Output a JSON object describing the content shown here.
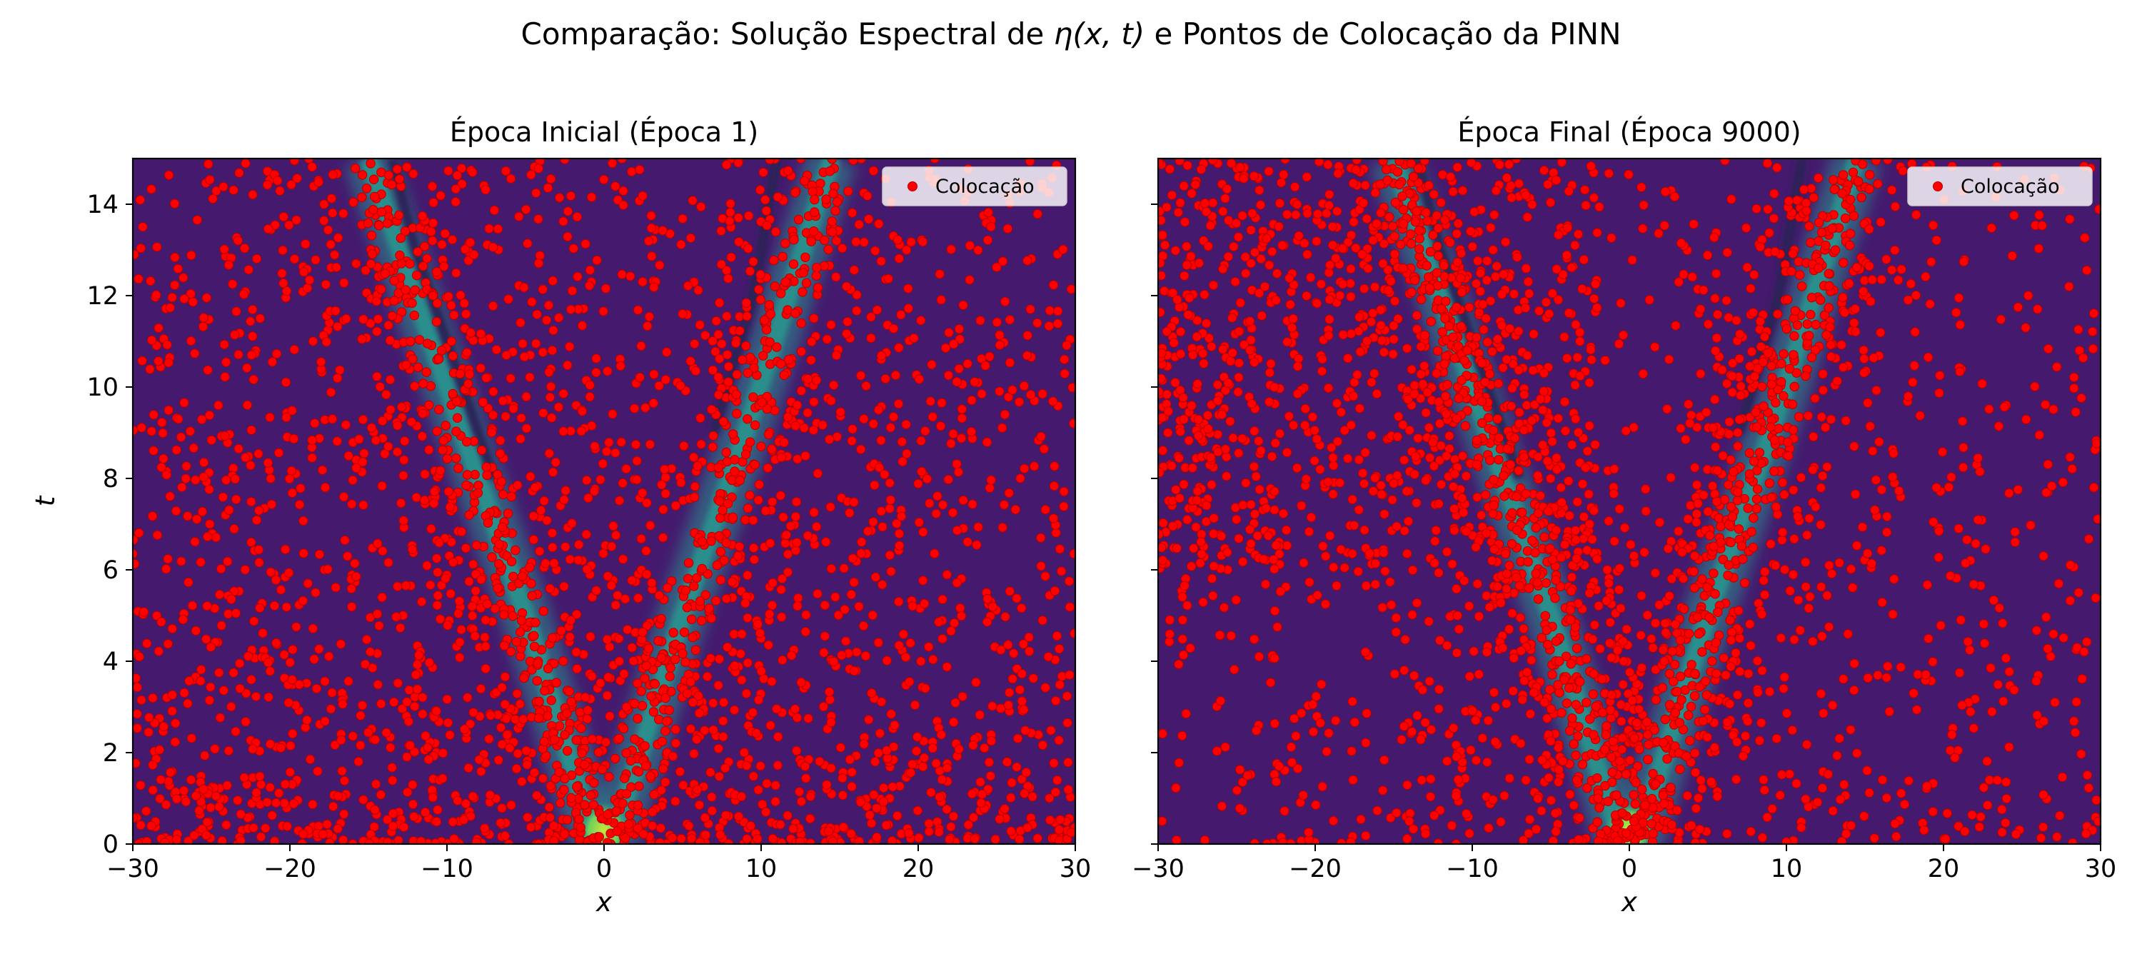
{
  "figure": {
    "suptitle_prefix": "Comparação: Solução Espectral de ",
    "suptitle_math": "η(x, t)",
    "suptitle_suffix": " e Pontos de Colocação da PINN"
  },
  "colors": {
    "background": "#451a6e",
    "band_mid": "#2b8f8c",
    "band_peak": "#b5e33b",
    "points": "#ff0000",
    "point_edge": "#b30000"
  },
  "chart_data": [
    {
      "type": "scatter",
      "background": "heatmap of η(x,t) with two diverging soliton bands",
      "title": "Época Inicial (Época 1)",
      "xlabel": "x",
      "ylabel": "t",
      "xlim": [
        -30,
        30
      ],
      "ylim": [
        0,
        15
      ],
      "xticks": [
        "−30",
        "−20",
        "−10",
        "0",
        "10",
        "20",
        "30"
      ],
      "yticks": [
        "0",
        "2",
        "4",
        "6",
        "8",
        "10",
        "12",
        "14"
      ],
      "legend": {
        "label": "Colocação",
        "position": "top-right"
      },
      "series": [
        {
          "name": "Colocação",
          "approx_count": 3000,
          "distribution": "dense near t=0 and along bands",
          "sample": [
            [
              -25.5,
              1.2
            ],
            [
              -18.3,
              3.4
            ],
            [
              -12.1,
              0.6
            ],
            [
              -8.4,
              5.2
            ],
            [
              -6.0,
              2.1
            ],
            [
              -3.2,
              0.4
            ],
            [
              2.7,
              3.9
            ],
            [
              7.2,
              6.1
            ],
            [
              12.8,
              1.7
            ],
            [
              18.5,
              2.6
            ],
            [
              24.0,
              0.9
            ],
            [
              -27.1,
              9.3
            ],
            [
              -20.2,
              12.1
            ],
            [
              -11.0,
              13.4
            ],
            [
              -7.5,
              10.2
            ],
            [
              5.0,
              11.6
            ],
            [
              9.6,
              8.3
            ],
            [
              13.4,
              14.1
            ],
            [
              22.6,
              10.4
            ],
            [
              27.8,
              6.7
            ]
          ]
        }
      ]
    },
    {
      "type": "scatter",
      "background": "heatmap of η(x,t) with two diverging soliton bands",
      "title": "Época Final (Época 9000)",
      "xlabel": "x",
      "ylabel": "",
      "xlim": [
        -30,
        30
      ],
      "ylim": [
        0,
        15
      ],
      "xticks": [
        "−30",
        "−20",
        "−10",
        "0",
        "10",
        "20",
        "30"
      ],
      "yticks": [],
      "legend": {
        "label": "Colocação",
        "position": "top-right"
      },
      "series": [
        {
          "name": "Colocação",
          "approx_count": 3000,
          "distribution": "concentrated along soliton bands and upper-left",
          "sample": [
            [
              -24.3,
              1.5
            ],
            [
              -16.8,
              4.2
            ],
            [
              -9.1,
              6.8
            ],
            [
              -5.4,
              3.1
            ],
            [
              -2.0,
              1.0
            ],
            [
              0.3,
              0.5
            ],
            [
              3.8,
              4.6
            ],
            [
              6.9,
              7.7
            ],
            [
              10.2,
              10.4
            ],
            [
              12.5,
              13.1
            ],
            [
              -14.4,
              12.6
            ],
            [
              -20.5,
              13.8
            ],
            [
              -26.2,
              9.7
            ],
            [
              18.1,
              3.3
            ],
            [
              25.4,
              12.0
            ],
            [
              28.6,
              5.5
            ],
            [
              -11.7,
              9.8
            ],
            [
              8.1,
              13.9
            ],
            [
              -6.6,
              14.2
            ],
            [
              15.9,
              8.8
            ]
          ]
        }
      ]
    }
  ]
}
